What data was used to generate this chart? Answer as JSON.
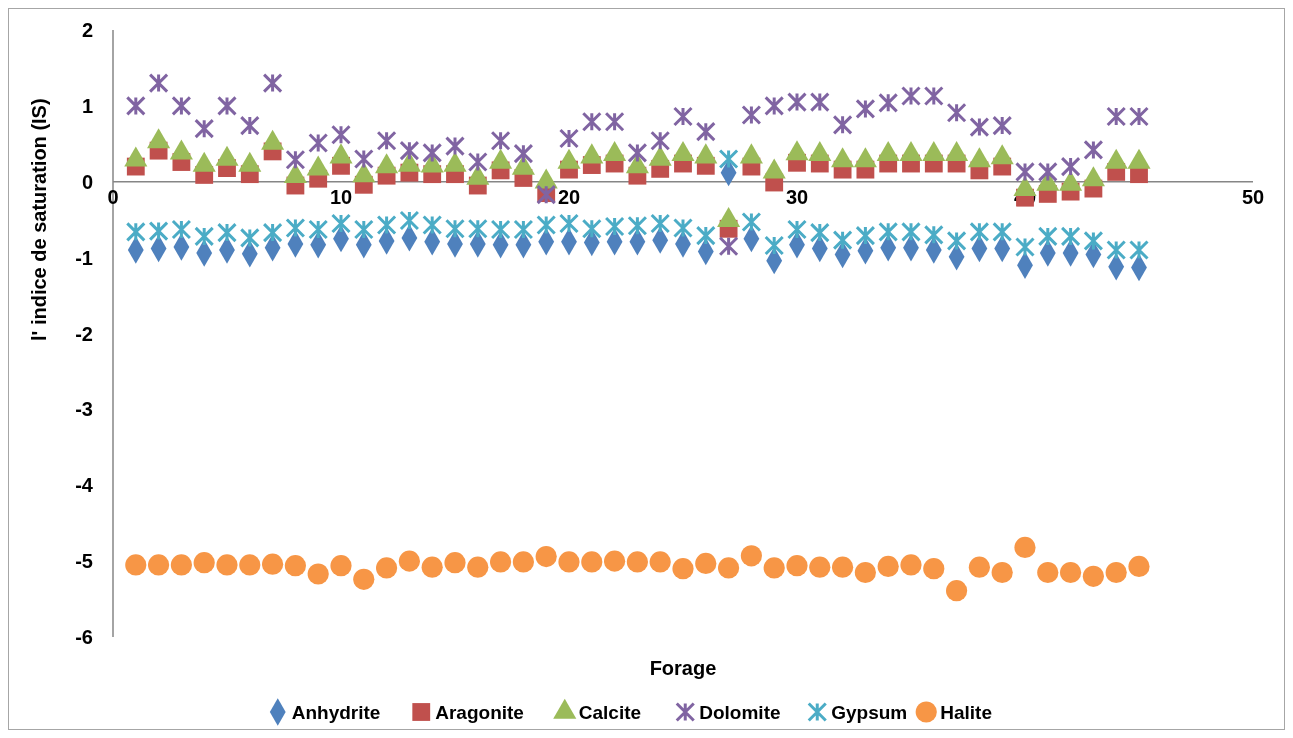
{
  "chart_data": {
    "type": "scatter",
    "xlabel": "Forage",
    "ylabel": "l' indice de saturation (IS)",
    "x": [
      1,
      2,
      3,
      4,
      5,
      6,
      7,
      8,
      9,
      10,
      11,
      12,
      13,
      14,
      15,
      16,
      17,
      18,
      19,
      20,
      21,
      22,
      23,
      24,
      25,
      26,
      27,
      28,
      29,
      30,
      31,
      32,
      33,
      34,
      35,
      36,
      37,
      38,
      39,
      40,
      41,
      42,
      43,
      44,
      45
    ],
    "xlim": [
      0,
      50
    ],
    "xticks": [
      0,
      10,
      20,
      30,
      40,
      50
    ],
    "ylim": [
      -6,
      2
    ],
    "yticks": [
      -6,
      -5,
      -4,
      -3,
      -2,
      -1,
      0,
      1,
      2
    ],
    "grid": false,
    "legend": "bottom",
    "series": [
      {
        "name": "Anhydrite",
        "color": "#4f81bd",
        "marker": "diamond",
        "values": [
          -0.9,
          -0.88,
          -0.86,
          -0.94,
          -0.9,
          -0.95,
          -0.87,
          -0.82,
          -0.83,
          -0.75,
          -0.83,
          -0.78,
          -0.74,
          -0.79,
          -0.82,
          -0.82,
          -0.83,
          -0.83,
          -0.79,
          -0.79,
          -0.8,
          -0.79,
          -0.79,
          -0.77,
          -0.82,
          -0.92,
          0.12,
          -0.75,
          -1.04,
          -0.83,
          -0.88,
          -0.96,
          -0.91,
          -0.87,
          -0.87,
          -0.9,
          -0.99,
          -0.88,
          -0.88,
          -1.1,
          -0.94,
          -0.94,
          -0.96,
          -1.12,
          -1.13
        ]
      },
      {
        "name": "Aragonite",
        "color": "#c0504d",
        "marker": "square",
        "values": [
          0.2,
          0.41,
          0.26,
          0.09,
          0.18,
          0.1,
          0.4,
          -0.05,
          0.04,
          0.21,
          -0.04,
          0.08,
          0.12,
          0.1,
          0.1,
          -0.05,
          0.15,
          0.05,
          -0.15,
          0.16,
          0.22,
          0.24,
          0.08,
          0.17,
          0.24,
          0.21,
          -0.62,
          0.2,
          -0.01,
          0.25,
          0.24,
          0.16,
          0.16,
          0.24,
          0.24,
          0.24,
          0.24,
          0.15,
          0.2,
          -0.21,
          -0.16,
          -0.13,
          -0.09,
          0.13,
          0.1
        ]
      },
      {
        "name": "Calcite",
        "color": "#9bbb59",
        "marker": "triangle",
        "values": [
          0.29,
          0.53,
          0.38,
          0.22,
          0.3,
          0.22,
          0.51,
          0.07,
          0.17,
          0.33,
          0.08,
          0.2,
          0.22,
          0.21,
          0.22,
          0.05,
          0.26,
          0.18,
          0.0,
          0.26,
          0.33,
          0.36,
          0.2,
          0.3,
          0.36,
          0.33,
          -0.51,
          0.33,
          0.13,
          0.37,
          0.36,
          0.28,
          0.28,
          0.36,
          0.36,
          0.36,
          0.36,
          0.28,
          0.32,
          -0.1,
          -0.03,
          -0.03,
          0.03,
          0.26,
          0.26
        ]
      },
      {
        "name": "Dolomite",
        "color": "#8064a2",
        "marker": "cross",
        "values": [
          1.0,
          1.3,
          1.0,
          0.7,
          1.0,
          0.74,
          1.3,
          0.29,
          0.51,
          0.62,
          0.3,
          0.54,
          0.41,
          0.38,
          0.47,
          0.26,
          0.54,
          0.37,
          -0.17,
          0.57,
          0.79,
          0.79,
          0.38,
          0.54,
          0.86,
          0.66,
          -0.85,
          0.88,
          1.0,
          1.05,
          1.05,
          0.75,
          0.96,
          1.04,
          1.13,
          1.13,
          0.91,
          0.72,
          0.74,
          0.13,
          0.13,
          0.2,
          0.42,
          0.86,
          0.86
        ]
      },
      {
        "name": "Gypsum",
        "color": "#4bacc6",
        "marker": "cross",
        "values": [
          -0.66,
          -0.65,
          -0.63,
          -0.72,
          -0.67,
          -0.74,
          -0.67,
          -0.61,
          -0.63,
          -0.55,
          -0.63,
          -0.57,
          -0.51,
          -0.57,
          -0.62,
          -0.62,
          -0.63,
          -0.63,
          -0.57,
          -0.55,
          -0.62,
          -0.59,
          -0.58,
          -0.55,
          -0.61,
          -0.71,
          0.3,
          -0.53,
          -0.84,
          -0.63,
          -0.67,
          -0.77,
          -0.71,
          -0.66,
          -0.66,
          -0.7,
          -0.78,
          -0.66,
          -0.66,
          -0.86,
          -0.72,
          -0.72,
          -0.78,
          -0.9,
          -0.9
        ]
      },
      {
        "name": "Halite",
        "color": "#f79646",
        "marker": "circle",
        "values": [
          -5.05,
          -5.05,
          -5.05,
          -5.02,
          -5.05,
          -5.05,
          -5.04,
          -5.06,
          -5.17,
          -5.06,
          -5.24,
          -5.09,
          -5.0,
          -5.08,
          -5.02,
          -5.08,
          -5.01,
          -5.01,
          -4.94,
          -5.01,
          -5.01,
          -5.0,
          -5.01,
          -5.01,
          -5.1,
          -5.03,
          -5.09,
          -4.93,
          -5.09,
          -5.06,
          -5.08,
          -5.08,
          -5.15,
          -5.07,
          -5.05,
          -5.1,
          -5.39,
          -5.08,
          -5.15,
          -4.82,
          -5.15,
          -5.15,
          -5.2,
          -5.15,
          -5.07
        ]
      }
    ]
  }
}
